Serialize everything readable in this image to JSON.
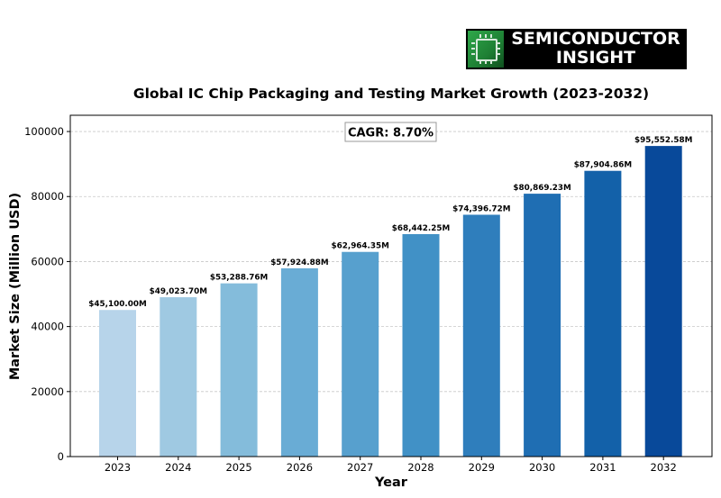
{
  "logo": {
    "line1": "SEMICONDUCTOR",
    "line2": "INSIGHT"
  },
  "chart_data": {
    "type": "bar",
    "title": "Global IC Chip Packaging and Testing Market Growth (2023-2032)",
    "xlabel": "Year",
    "ylabel": "Market Size (Million USD)",
    "categories": [
      "2023",
      "2024",
      "2025",
      "2026",
      "2027",
      "2028",
      "2029",
      "2030",
      "2031",
      "2032"
    ],
    "values": [
      45100.0,
      49023.7,
      53288.76,
      57924.88,
      62964.35,
      68442.25,
      74396.72,
      80869.23,
      87904.86,
      95552.58
    ],
    "data_labels": [
      "$45,100.00M",
      "$49,023.70M",
      "$53,288.76M",
      "$57,924.88M",
      "$62,964.35M",
      "$68,442.25M",
      "$74,396.72M",
      "$80,869.23M",
      "$87,904.86M",
      "$95,552.58M"
    ],
    "ylim": [
      0,
      105000
    ],
    "yticks": [
      0,
      20000,
      40000,
      60000,
      80000,
      100000
    ],
    "ytick_labels": [
      "0",
      "20000",
      "40000",
      "60000",
      "80000",
      "100000"
    ],
    "annotation": "CAGR: 8.70%",
    "grid": "y-dashed",
    "bar_colors": [
      "#b7d4ea",
      "#9fc9e2",
      "#84bcdb",
      "#69acd5",
      "#57a0ce",
      "#4191c6",
      "#2f7ebc",
      "#1f6eb3",
      "#1361a9",
      "#08499a"
    ]
  }
}
